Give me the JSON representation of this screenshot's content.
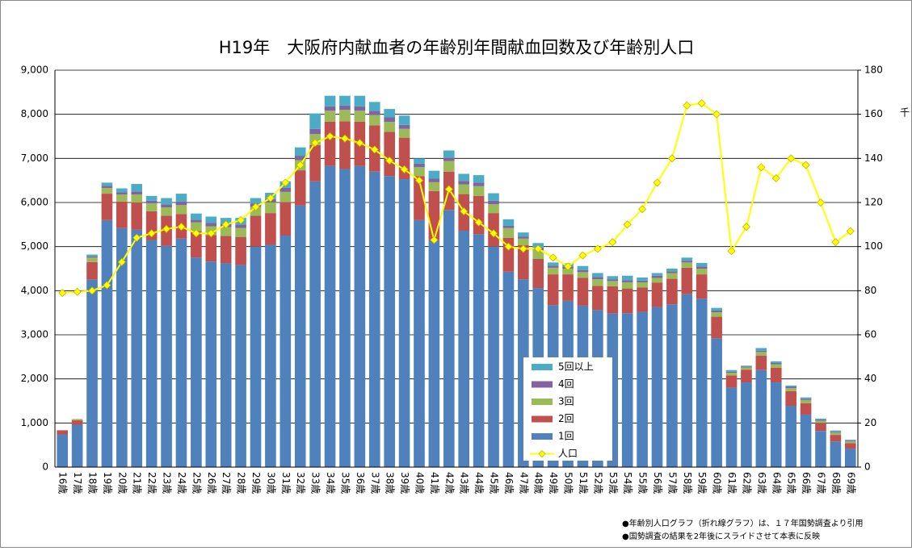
{
  "chart_data": {
    "type": "bar",
    "title": "H19年　大阪府内献血者の年齢別年間献血回数及び年齢別人口",
    "categories": [
      "16歳",
      "17歳",
      "18歳",
      "19歳",
      "20歳",
      "21歳",
      "22歳",
      "23歳",
      "24歳",
      "25歳",
      "26歳",
      "27歳",
      "28歳",
      "29歳",
      "30歳",
      "31歳",
      "32歳",
      "33歳",
      "34歳",
      "35歳",
      "36歳",
      "37歳",
      "38歳",
      "39歳",
      "40歳",
      "41歳",
      "42歳",
      "43歳",
      "44歳",
      "45歳",
      "46歳",
      "47歳",
      "48歳",
      "49歳",
      "50歳",
      "51歳",
      "52歳",
      "53歳",
      "54歳",
      "55歳",
      "56歳",
      "57歳",
      "58歳",
      "59歳",
      "60歳",
      "61歳",
      "62歳",
      "63歳",
      "64歳",
      "65歳",
      "66歳",
      "67歳",
      "68歳",
      "69歳"
    ],
    "series": [
      {
        "name": "1回",
        "color": "#4f81bd",
        "values": [
          740,
          960,
          4250,
          5600,
          5420,
          5380,
          5150,
          5020,
          5180,
          4750,
          4660,
          4620,
          4580,
          5000,
          5040,
          5250,
          5930,
          6480,
          6830,
          6760,
          6830,
          6700,
          6600,
          6530,
          5600,
          5150,
          5830,
          5360,
          5280,
          5000,
          4430,
          4260,
          4060,
          3670,
          3770,
          3660,
          3560,
          3480,
          3490,
          3520,
          3630,
          3690,
          3920,
          3820,
          2920,
          1800,
          1920,
          2200,
          1920,
          1390,
          1190,
          820,
          580,
          420
        ]
      },
      {
        "name": "2回",
        "color": "#c0504d",
        "values": [
          95,
          100,
          400,
          600,
          600,
          620,
          650,
          680,
          560,
          600,
          600,
          620,
          640,
          700,
          720,
          760,
          800,
          820,
          1000,
          1080,
          1000,
          1050,
          1000,
          940,
          1000,
          1110,
          870,
          830,
          870,
          760,
          770,
          770,
          660,
          700,
          600,
          630,
          550,
          620,
          560,
          550,
          550,
          580,
          600,
          550,
          490,
          280,
          290,
          330,
          330,
          330,
          260,
          180,
          150,
          120
        ]
      },
      {
        "name": "3回",
        "color": "#9bbb59",
        "values": [
          0,
          30,
          100,
          130,
          160,
          180,
          180,
          190,
          200,
          200,
          200,
          200,
          200,
          200,
          240,
          230,
          230,
          250,
          250,
          260,
          250,
          230,
          230,
          200,
          200,
          200,
          240,
          220,
          220,
          200,
          220,
          150,
          200,
          150,
          130,
          130,
          150,
          120,
          140,
          120,
          110,
          130,
          120,
          130,
          100,
          60,
          50,
          80,
          80,
          70,
          70,
          50,
          50,
          40
        ]
      },
      {
        "name": "4回",
        "color": "#8064a2",
        "values": [
          0,
          0,
          30,
          50,
          50,
          70,
          60,
          70,
          80,
          60,
          80,
          80,
          80,
          80,
          80,
          90,
          100,
          120,
          100,
          100,
          100,
          100,
          100,
          90,
          80,
          80,
          80,
          80,
          80,
          80,
          50,
          50,
          60,
          50,
          50,
          50,
          50,
          40,
          50,
          40,
          50,
          40,
          40,
          50,
          40,
          20,
          20,
          30,
          30,
          30,
          30,
          20,
          20,
          20
        ]
      },
      {
        "name": "5回以上",
        "color": "#4bacc6",
        "values": [
          0,
          0,
          40,
          70,
          90,
          170,
          110,
          140,
          180,
          140,
          140,
          130,
          150,
          120,
          140,
          150,
          190,
          350,
          240,
          220,
          240,
          200,
          190,
          210,
          120,
          180,
          160,
          160,
          170,
          170,
          150,
          90,
          100,
          70,
          70,
          90,
          90,
          70,
          100,
          70,
          60,
          60,
          70,
          80,
          60,
          40,
          20,
          60,
          40,
          30,
          30,
          30,
          30,
          20
        ]
      },
      {
        "name": "人口",
        "color": "#ffff00",
        "axis": "y2",
        "values": [
          79,
          79.5,
          80,
          82.5,
          93,
          104,
          106,
          108,
          109,
          106,
          106,
          110,
          112,
          118,
          122,
          129,
          137,
          147,
          150,
          149,
          147,
          144,
          139,
          135,
          130,
          103,
          126,
          116,
          111,
          106,
          100,
          99,
          99,
          95,
          91,
          96,
          99,
          102,
          110,
          117,
          129,
          140,
          164,
          165,
          160,
          98,
          109,
          136,
          131,
          140,
          137,
          120,
          102,
          107
        ]
      }
    ],
    "ylim": [
      0,
      9000
    ],
    "yticks": [
      0,
      {
        "value": 1000,
        "label": "1,000"
      },
      {
        "value": 2000,
        "label": "2,000"
      },
      {
        "value": 3000,
        "label": "3,000"
      },
      {
        "value": 4000,
        "label": "4,000"
      },
      {
        "value": 5000,
        "label": "5,000"
      },
      {
        "value": 6000,
        "label": "6,000"
      },
      {
        "value": 7000,
        "label": "7,000"
      },
      {
        "value": 8000,
        "label": "8,000"
      },
      {
        "value": 9000,
        "label": "9,000"
      }
    ],
    "y2lim": [
      0,
      180
    ],
    "y2ticks": [
      0,
      20,
      40,
      60,
      80,
      100,
      120,
      140,
      160,
      180
    ],
    "y2_label": "千",
    "grid": true,
    "notes": [
      "●年齢別人口グラフ（折れ線グラフ）は、１７年国勢調査より引用",
      "●国勢調査の結果を2年後にスライドさせて本表に反映"
    ]
  }
}
